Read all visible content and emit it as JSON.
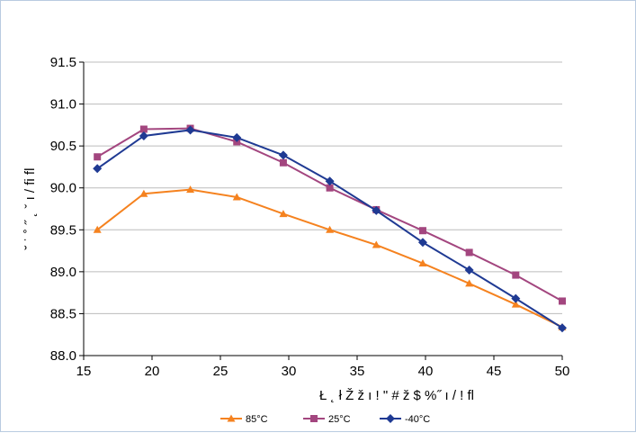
{
  "chart_data": {
    "type": "line",
    "title": "",
    "xlabel": "Ł ˛ ł Ž ž ı ! \" # ž $ %˝ ı / ! fl",
    "ylabel": "˘ ˙ ˚ ˝ ˛ ˇ ı / fi fl",
    "xlim": [
      15,
      50
    ],
    "ylim": [
      88.0,
      91.5
    ],
    "x_ticks": [
      "15",
      "20",
      "25",
      "30",
      "35",
      "40",
      "45",
      "50"
    ],
    "y_ticks": [
      "88.0",
      "88.5",
      "89.0",
      "89.5",
      "90.0",
      "90.5",
      "91.0",
      "91.5"
    ],
    "grid": true,
    "legend_position": "bottom",
    "series": [
      {
        "name": "85°C",
        "color": "#f5821f",
        "marker": "triangle",
        "x": [
          16,
          19.4,
          22.8,
          26.2,
          29.6,
          33,
          36.4,
          39.8,
          43.2,
          46.6,
          50
        ],
        "y": [
          89.5,
          89.93,
          89.98,
          89.89,
          89.69,
          89.5,
          89.32,
          89.1,
          88.86,
          88.61,
          88.34
        ]
      },
      {
        "name": "25°C",
        "color": "#a3467f",
        "marker": "square",
        "x": [
          16,
          19.4,
          22.8,
          26.2,
          29.6,
          33,
          36.4,
          39.8,
          43.2,
          46.6,
          50
        ],
        "y": [
          90.37,
          90.7,
          90.71,
          90.55,
          90.3,
          90.0,
          89.74,
          89.49,
          89.23,
          88.96,
          88.65
        ]
      },
      {
        "name": "-40°C",
        "color": "#1f3a93",
        "marker": "diamond",
        "x": [
          16,
          19.4,
          22.8,
          26.2,
          29.6,
          33,
          36.4,
          39.8,
          43.2,
          46.6,
          50
        ],
        "y": [
          90.23,
          90.62,
          90.69,
          90.6,
          90.39,
          90.08,
          89.73,
          89.35,
          89.02,
          88.68,
          88.33
        ]
      }
    ]
  }
}
